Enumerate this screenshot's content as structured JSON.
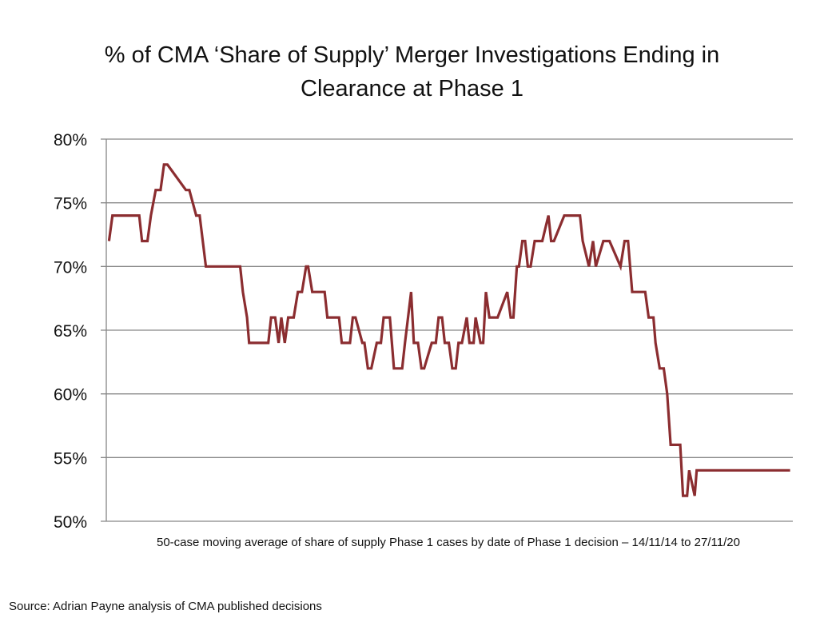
{
  "chart_data": {
    "type": "line",
    "title": "% of CMA ‘Share of Supply’ Merger Investigations Ending in Clearance at Phase 1",
    "title_lines": [
      "% of CMA ‘Share of Supply’ Merger Investigations Ending in",
      "Clearance at Phase 1"
    ],
    "xlabel": "50-case moving average of share of supply Phase 1 cases by date of Phase 1 decision  – 14/11/14 to 27/11/20",
    "ylabel": "",
    "source": "Source: Adrian Payne analysis of CMA published decisions",
    "ylim": [
      50,
      80
    ],
    "xlim": [
      0,
      100
    ],
    "x_range_text": [
      "14/11/14",
      "27/11/20"
    ],
    "yticks": [
      50,
      55,
      60,
      65,
      70,
      75,
      80
    ],
    "ytick_labels": [
      "50%",
      "55%",
      "60%",
      "65%",
      "70%",
      "75%",
      "80%"
    ],
    "grid": true,
    "legend": "none",
    "line_color": "#8B2D30",
    "grid_color": "#868686",
    "series": [
      {
        "name": "50-case moving average % cleared at Phase 1",
        "x": [
          0.4,
          0.9,
          4.8,
          5.2,
          6.0,
          6.5,
          7.2,
          7.9,
          8.4,
          8.9,
          11.6,
          12.1,
          13.1,
          13.6,
          14.5,
          15.0,
          16.1,
          16.4,
          19.4,
          19.5,
          19.9,
          20.5,
          20.8,
          23.6,
          24.0,
          24.6,
          25.1,
          25.5,
          26.0,
          26.5,
          27.3,
          27.9,
          28.5,
          29.1,
          29.4,
          30.0,
          30.6,
          31.3,
          31.8,
          32.2,
          33.0,
          33.9,
          34.3,
          34.9,
          35.5,
          35.9,
          36.3,
          37.3,
          37.6,
          38.1,
          38.6,
          39.4,
          40.0,
          40.4,
          40.9,
          41.3,
          41.9,
          42.5,
          43.1,
          43.5,
          44.4,
          44.8,
          45.4,
          45.9,
          46.3,
          47.4,
          48.0,
          48.4,
          48.9,
          49.3,
          49.9,
          50.4,
          50.9,
          51.3,
          51.8,
          52.5,
          52.9,
          53.5,
          53.8,
          54.5,
          54.9,
          55.3,
          55.8,
          56.4,
          57.0,
          58.4,
          58.9,
          59.3,
          59.8,
          60.1,
          60.6,
          61.0,
          61.4,
          61.8,
          62.4,
          63.0,
          63.5,
          64.4,
          64.8,
          65.2,
          66.7,
          67.0,
          67.5,
          68.4,
          69.0,
          69.4,
          70.3,
          70.9,
          71.3,
          72.4,
          72.8,
          73.3,
          74.9,
          75.5,
          76.0,
          76.6,
          77.1,
          77.5,
          78.5,
          79.0,
          79.7,
          80.0,
          80.6,
          81.2,
          81.7,
          82.2,
          82.8,
          83.6,
          84.0,
          84.6,
          84.9,
          85.7,
          86.0,
          86.5,
          87.2,
          87.5,
          88.1,
          88.7,
          89.4,
          89.9,
          91.0,
          91.3,
          92.2,
          92.6,
          93.7,
          94.0,
          94.6,
          95.0,
          96.1,
          96.4,
          96.8,
          97.1,
          97.5,
          98.5,
          99.6
        ],
        "values": [
          72,
          74,
          74,
          72,
          72,
          74,
          76,
          76,
          78,
          78,
          76,
          76,
          74,
          74,
          70,
          70,
          70,
          70,
          70,
          70,
          68,
          66,
          64,
          64,
          66,
          66,
          64,
          66,
          64,
          66,
          66,
          68,
          68,
          70,
          70,
          68,
          68,
          68,
          68,
          66,
          66,
          66,
          64,
          64,
          64,
          66,
          66,
          64,
          64,
          62,
          62,
          64,
          64,
          66,
          66,
          66,
          62,
          62,
          62,
          64,
          68,
          64,
          64,
          62,
          62,
          64,
          64,
          66,
          66,
          64,
          64,
          62,
          62,
          64,
          64,
          66,
          64,
          64,
          66,
          64,
          64,
          68,
          66,
          66,
          66,
          68,
          66,
          66,
          70,
          70,
          72,
          72,
          70,
          70,
          72,
          72,
          72,
          74,
          72,
          72,
          74,
          74,
          74,
          74,
          74,
          72,
          70,
          72,
          70,
          72,
          72,
          72,
          70,
          72,
          72,
          68,
          68,
          68,
          68,
          66,
          66,
          64,
          62,
          62,
          60,
          56,
          56,
          56,
          52,
          52,
          54,
          52,
          54,
          54,
          54,
          54,
          54,
          54,
          54,
          54,
          54,
          54,
          54,
          54,
          54,
          54,
          54,
          54,
          54,
          54,
          54,
          54,
          54,
          54,
          54
        ]
      }
    ]
  }
}
